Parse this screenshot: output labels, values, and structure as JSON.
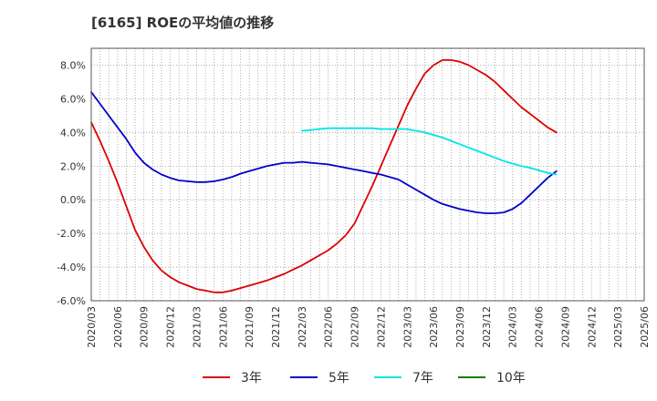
{
  "chart_data": {
    "type": "line",
    "title": "[6165]  ROEの平均値の推移",
    "xlabel": "",
    "ylabel": "",
    "ylim": [
      -6,
      9
    ],
    "y_ticks": [
      -6,
      -4,
      -2,
      0,
      2,
      4,
      6,
      8
    ],
    "y_tick_labels": [
      "-6.0%",
      "-4.0%",
      "-2.0%",
      "0.0%",
      "2.0%",
      "4.0%",
      "6.0%",
      "8.0%"
    ],
    "x_tick_labels": [
      "2020/03",
      "2020/06",
      "2020/09",
      "2020/12",
      "2021/03",
      "2021/06",
      "2021/09",
      "2021/12",
      "2022/03",
      "2022/06",
      "2022/09",
      "2022/12",
      "2023/03",
      "2023/06",
      "2023/09",
      "2023/12",
      "2024/03",
      "2024/06",
      "2024/09",
      "2024/12",
      "2025/03",
      "2025/06"
    ],
    "grid": true,
    "legend_position": "bottom",
    "series": [
      {
        "name": "3年",
        "color": "#dd0000",
        "start": "2020/03",
        "values": [
          4.6,
          3.5,
          2.3,
          1.0,
          -0.4,
          -1.8,
          -2.8,
          -3.6,
          -4.2,
          -4.6,
          -4.9,
          -5.1,
          -5.3,
          -5.4,
          -5.5,
          -5.5,
          -5.4,
          -5.25,
          -5.1,
          -4.95,
          -4.8,
          -4.6,
          -4.4,
          -4.15,
          -3.9,
          -3.6,
          -3.3,
          -3.0,
          -2.6,
          -2.1,
          -1.4,
          -0.3,
          0.8,
          2.0,
          3.2,
          4.4,
          5.6,
          6.6,
          7.5,
          8.0,
          8.3,
          8.3,
          8.2,
          8.0,
          7.7,
          7.4,
          7.0,
          6.5,
          6.0,
          5.5,
          5.1,
          4.7,
          4.3,
          4.0
        ]
      },
      {
        "name": "5年",
        "color": "#0000cc",
        "start": "2020/03",
        "values": [
          6.4,
          5.7,
          5.0,
          4.3,
          3.6,
          2.8,
          2.2,
          1.8,
          1.5,
          1.3,
          1.15,
          1.1,
          1.05,
          1.05,
          1.1,
          1.2,
          1.35,
          1.55,
          1.7,
          1.85,
          2.0,
          2.1,
          2.2,
          2.2,
          2.25,
          2.2,
          2.15,
          2.1,
          2.0,
          1.9,
          1.8,
          1.7,
          1.6,
          1.5,
          1.35,
          1.2,
          0.9,
          0.6,
          0.3,
          0.0,
          -0.25,
          -0.4,
          -0.55,
          -0.65,
          -0.75,
          -0.8,
          -0.8,
          -0.75,
          -0.55,
          -0.2,
          0.3,
          0.8,
          1.3,
          1.7
        ]
      },
      {
        "name": "7年",
        "color": "#00e5e5",
        "start": "2022/03",
        "values": [
          4.1,
          4.15,
          4.2,
          4.25,
          4.25,
          4.25,
          4.25,
          4.25,
          4.25,
          4.2,
          4.2,
          4.2,
          4.2,
          4.1,
          4.0,
          3.85,
          3.7,
          3.5,
          3.3,
          3.1,
          2.9,
          2.7,
          2.5,
          2.3,
          2.15,
          2.0,
          1.9,
          1.75,
          1.6,
          1.5
        ]
      },
      {
        "name": "10年",
        "color": "#008000",
        "start": "2020/03",
        "values": []
      }
    ]
  }
}
